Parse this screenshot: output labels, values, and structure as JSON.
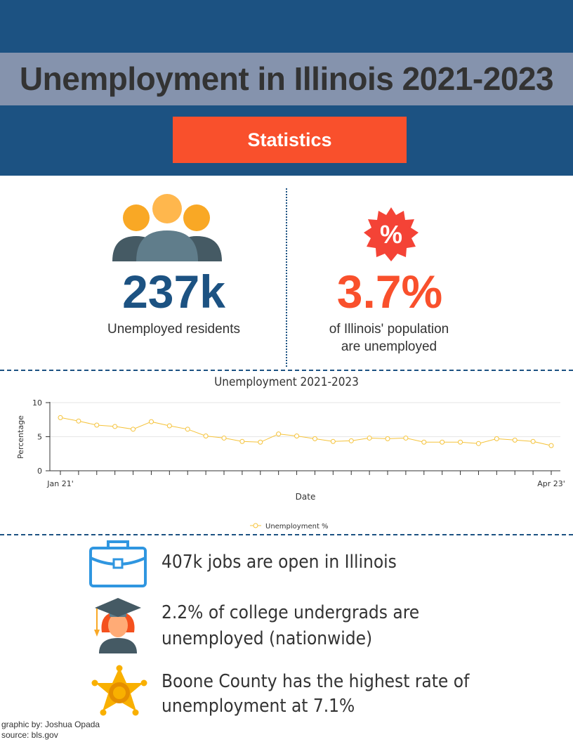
{
  "header": {
    "title": "Unemployment in Illinois 2021-2023",
    "badge_label": "Statistics"
  },
  "stats": {
    "residents": {
      "value": "237k",
      "label": "Unemployed residents"
    },
    "rate": {
      "badge": "%",
      "value": "3.7%",
      "label_line1": "of Illinois' population",
      "label_line2": "are unemployed"
    }
  },
  "chart_data": {
    "type": "line",
    "title": "Unemployment 2021-2023",
    "xlabel": "Date",
    "ylabel": "Percentage",
    "ylim": [
      0,
      10
    ],
    "yticks": [
      0,
      5,
      10
    ],
    "x_tick_labels": {
      "first": "Jan 21'",
      "last": "Apr 23'"
    },
    "legend_position": "bottom",
    "grid": true,
    "series": [
      {
        "name": "Unemployment %",
        "color": "#f5c33b",
        "values": [
          7.8,
          7.3,
          6.7,
          6.5,
          6.1,
          7.2,
          6.6,
          6.1,
          5.1,
          4.8,
          4.3,
          4.2,
          5.4,
          5.1,
          4.7,
          4.3,
          4.4,
          4.8,
          4.7,
          4.8,
          4.2,
          4.2,
          4.2,
          4.0,
          4.7,
          4.5,
          4.3,
          3.7
        ]
      }
    ]
  },
  "facts": [
    {
      "icon": "briefcase-icon",
      "line1": "407k jobs are open in Illinois",
      "line2": ""
    },
    {
      "icon": "graduate-icon",
      "line1": "2.2% of college undergrads are",
      "line2": "unemployed (nationwide)"
    },
    {
      "icon": "sheriff-star-icon",
      "line1": "Boone County has the highest rate of",
      "line2": "unemployment at 7.1%"
    }
  ],
  "credits": {
    "author": "graphic by: Joshua Opada",
    "source": "source: bls.gov"
  },
  "colors": {
    "navy": "#1c5282",
    "title_band": "#8593ad",
    "accent": "#f9502c",
    "line": "#f5c33b",
    "text": "#333333"
  }
}
